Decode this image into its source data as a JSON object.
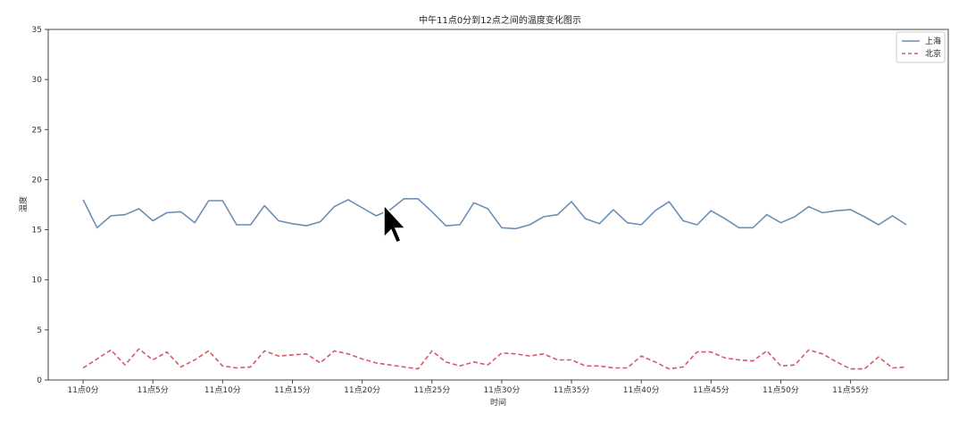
{
  "chart_data": {
    "type": "line",
    "title": "中午11点0分到12点之间的温度变化图示",
    "xlabel": "时间",
    "ylabel": "温度",
    "ylim": [
      0,
      35
    ],
    "yticks": [
      0,
      5,
      10,
      15,
      20,
      25,
      30,
      35
    ],
    "xlim": [
      -2.5,
      62
    ],
    "xticks": [
      0,
      5,
      10,
      15,
      20,
      25,
      30,
      35,
      40,
      45,
      50,
      55
    ],
    "xtick_labels": [
      "11点0分",
      "11点5分",
      "11点10分",
      "11点15分",
      "11点20分",
      "11点25分",
      "11点30分",
      "11点35分",
      "11点40分",
      "11点45分",
      "11点50分",
      "11点55分"
    ],
    "x": [
      0,
      1,
      2,
      3,
      4,
      5,
      6,
      7,
      8,
      9,
      10,
      11,
      12,
      13,
      14,
      15,
      16,
      17,
      18,
      19,
      20,
      21,
      22,
      23,
      24,
      25,
      26,
      27,
      28,
      29,
      30,
      31,
      32,
      33,
      34,
      35,
      36,
      37,
      38,
      39,
      40,
      41,
      42,
      43,
      44,
      45,
      46,
      47,
      48,
      49,
      50,
      51,
      52,
      53,
      54,
      55,
      56,
      57,
      58,
      59
    ],
    "series": [
      {
        "name": "上海",
        "color": "#6b8fb5",
        "style": "solid",
        "values": [
          18.0,
          15.2,
          16.4,
          16.5,
          17.1,
          15.9,
          16.7,
          16.8,
          15.7,
          17.9,
          17.9,
          15.5,
          15.5,
          17.4,
          15.9,
          15.6,
          15.4,
          15.8,
          17.3,
          18.0,
          17.2,
          16.4,
          17.0,
          18.1,
          18.1,
          16.8,
          15.4,
          15.5,
          17.7,
          17.1,
          15.2,
          15.1,
          15.5,
          16.3,
          16.5,
          17.8,
          16.1,
          15.6,
          17.0,
          15.7,
          15.5,
          16.9,
          17.8,
          15.9,
          15.5,
          16.9,
          16.1,
          15.2,
          15.2,
          16.5,
          15.7,
          16.3,
          17.3,
          16.7,
          16.9,
          17.0,
          16.3,
          15.5,
          16.4,
          15.5
        ]
      },
      {
        "name": "北京",
        "color": "#d45a6a",
        "style": "dashed",
        "values": [
          1.2,
          2.1,
          3.0,
          1.5,
          3.1,
          2.0,
          2.8,
          1.3,
          2.0,
          2.9,
          1.4,
          1.2,
          1.3,
          2.9,
          2.4,
          2.5,
          2.6,
          1.7,
          2.9,
          2.6,
          2.1,
          1.7,
          1.5,
          1.3,
          1.1,
          2.9,
          1.8,
          1.4,
          1.8,
          1.5,
          2.7,
          2.6,
          2.4,
          2.6,
          2.0,
          2.0,
          1.4,
          1.4,
          1.2,
          1.2,
          2.4,
          1.8,
          1.1,
          1.3,
          2.8,
          2.8,
          2.2,
          2.0,
          1.9,
          2.9,
          1.4,
          1.5,
          3.0,
          2.6,
          1.8,
          1.1,
          1.1,
          2.3,
          1.2,
          1.3
        ]
      }
    ],
    "legend": "top-right",
    "grid": false
  }
}
